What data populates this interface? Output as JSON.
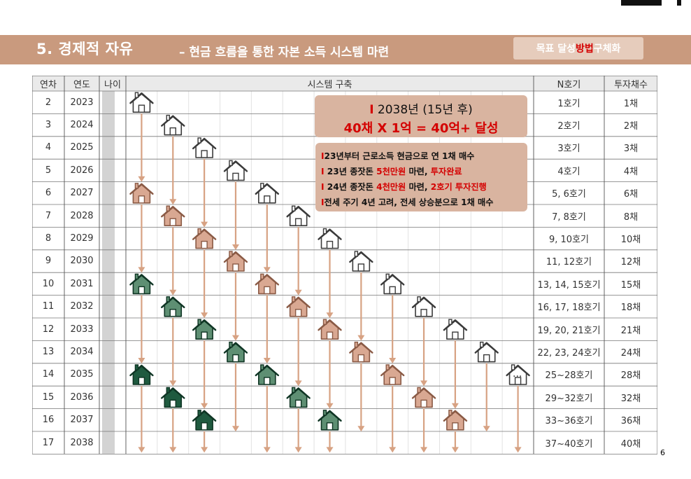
{
  "banner": {
    "title": "5. 경제적 자유",
    "subtitle": "– 현금 흐름을 통한 자본 소득 시스템 마련",
    "badge": {
      "part1": "목표 달성 ",
      "highlight": "방법",
      "part2": " 구체화"
    }
  },
  "table": {
    "headers": {
      "order": "연차",
      "year": "연도",
      "age": "나이",
      "system": "시스템 구축",
      "nth": "N호기",
      "count": "투자채수"
    },
    "rows": [
      {
        "order": "2",
        "year": "2023",
        "nth": "1호기",
        "count": "1채"
      },
      {
        "order": "3",
        "year": "2024",
        "nth": "2호기",
        "count": "2채"
      },
      {
        "order": "4",
        "year": "2025",
        "nth": "3호기",
        "count": "3채"
      },
      {
        "order": "5",
        "year": "2026",
        "nth": "4호기",
        "count": "4채"
      },
      {
        "order": "6",
        "year": "2027",
        "nth": "5, 6호기",
        "count": "6채"
      },
      {
        "order": "7",
        "year": "2028",
        "nth": "7, 8호기",
        "count": "8채"
      },
      {
        "order": "8",
        "year": "2029",
        "nth": "9, 10호기",
        "count": "10채"
      },
      {
        "order": "9",
        "year": "2030",
        "nth": "11, 12호기",
        "count": "12채"
      },
      {
        "order": "10",
        "year": "2031",
        "nth": "13, 14, 15호기",
        "count": "15채"
      },
      {
        "order": "11",
        "year": "2032",
        "nth": "16, 17, 18호기",
        "count": "18채"
      },
      {
        "order": "12",
        "year": "2033",
        "nth": "19, 20, 21호기",
        "count": "21채"
      },
      {
        "order": "13",
        "year": "2034",
        "nth": "22, 23, 24호기",
        "count": "24채"
      },
      {
        "order": "14",
        "year": "2035",
        "nth": "25~28호기",
        "count": "28채"
      },
      {
        "order": "15",
        "year": "2036",
        "nth": "29~32호기",
        "count": "32채"
      },
      {
        "order": "16",
        "year": "2037",
        "nth": "33~36호기",
        "count": "36채"
      },
      {
        "order": "17",
        "year": "2038",
        "nth": "37~40호기",
        "count": "40채"
      }
    ]
  },
  "callout_goal": {
    "bar": "I",
    "line1": " 2038년 (15년  후)",
    "line2": "40채 X 1억 = 40억+ 달성"
  },
  "callout_notes": {
    "bar": "I",
    "n1": {
      "text": "23년부터 근로소득 현금으로 연 1채 매수"
    },
    "n2": {
      "a": " 23년  종잣돈 ",
      "red1": "5천만원",
      "b": " 마련, ",
      "red2": "투자완료"
    },
    "n3": {
      "a": " 24년 종잣돈 ",
      "red1": "4천만원",
      "b": " 마련, ",
      "red2": "2호기 투자진행"
    },
    "n4": {
      "text": "전세 주기 4년 고려, 전세 상승분으로 1채 매수"
    }
  },
  "ellipsis": "...",
  "page_number": "6",
  "colors": {
    "banner": "#c99a7e",
    "arrow": "#d7a283",
    "house_outline": "#3a3a3a",
    "house_tan": "#d9a892",
    "house_green_light": "#5e8f73",
    "house_green_dark": "#1f5a3f",
    "accent_red": "#d40000"
  }
}
